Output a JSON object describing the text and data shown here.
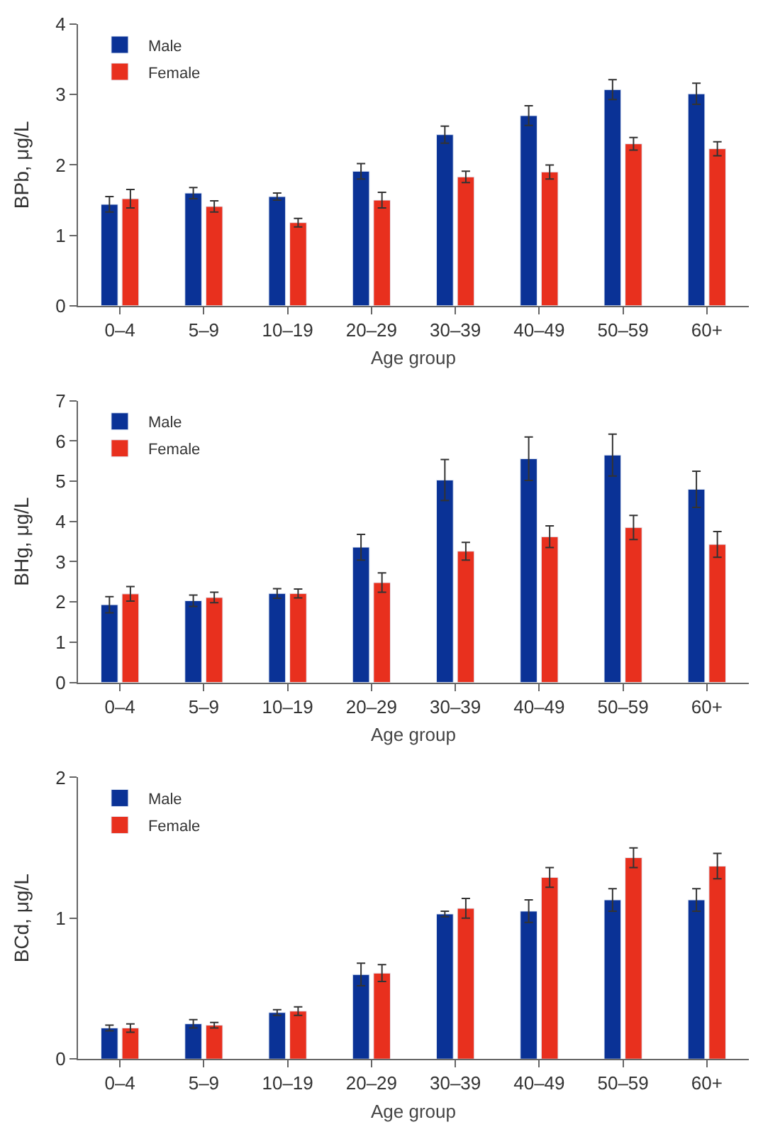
{
  "chart_data": [
    {
      "type": "bar",
      "xlabel": "Age group",
      "ylabel": "BPb, μg/L",
      "categories": [
        "0–4",
        "5–9",
        "10–19",
        "20–29",
        "30–39",
        "40–49",
        "50–59",
        "60+"
      ],
      "ylim": [
        0,
        4
      ],
      "yticks": [
        0,
        1,
        2,
        3,
        4
      ],
      "legend": "top left",
      "series": [
        {
          "name": "Male",
          "color": "#0a3296",
          "values": [
            1.44,
            1.6,
            1.55,
            1.91,
            2.43,
            2.7,
            3.07,
            3.01
          ],
          "errors": [
            0.11,
            0.08,
            0.05,
            0.11,
            0.12,
            0.14,
            0.14,
            0.15
          ]
        },
        {
          "name": "Female",
          "color": "#e8301e",
          "values": [
            1.52,
            1.41,
            1.18,
            1.5,
            1.83,
            1.9,
            2.3,
            2.23
          ],
          "errors": [
            0.13,
            0.08,
            0.06,
            0.11,
            0.08,
            0.1,
            0.09,
            0.1
          ]
        }
      ]
    },
    {
      "type": "bar",
      "xlabel": "Age group",
      "ylabel": "BHg, μg/L",
      "categories": [
        "0–4",
        "5–9",
        "10–19",
        "20–29",
        "30–39",
        "40–49",
        "50–59",
        "60+"
      ],
      "ylim": [
        0,
        7
      ],
      "yticks": [
        0,
        1,
        2,
        3,
        4,
        5,
        6,
        7
      ],
      "legend": "top left",
      "series": [
        {
          "name": "Male",
          "color": "#0a3296",
          "values": [
            1.93,
            2.03,
            2.21,
            3.36,
            5.03,
            5.56,
            5.65,
            4.8
          ],
          "errors": [
            0.2,
            0.14,
            0.12,
            0.32,
            0.51,
            0.54,
            0.52,
            0.45
          ]
        },
        {
          "name": "Female",
          "color": "#e8301e",
          "values": [
            2.2,
            2.11,
            2.21,
            2.48,
            3.26,
            3.62,
            3.85,
            3.43
          ],
          "errors": [
            0.18,
            0.13,
            0.11,
            0.24,
            0.22,
            0.27,
            0.3,
            0.32
          ]
        }
      ]
    },
    {
      "type": "bar",
      "xlabel": "Age group",
      "ylabel": "BCd, μg/L",
      "categories": [
        "0–4",
        "5–9",
        "10–19",
        "20–29",
        "30–39",
        "40–49",
        "50–59",
        "60+"
      ],
      "ylim": [
        0,
        2
      ],
      "yticks": [
        0,
        1,
        2
      ],
      "legend": "top left",
      "series": [
        {
          "name": "Male",
          "color": "#0a3296",
          "values": [
            0.22,
            0.25,
            0.33,
            0.6,
            1.03,
            1.05,
            1.13,
            1.13
          ],
          "errors": [
            0.02,
            0.03,
            0.02,
            0.08,
            0.02,
            0.08,
            0.08,
            0.08
          ]
        },
        {
          "name": "Female",
          "color": "#e8301e",
          "values": [
            0.22,
            0.24,
            0.34,
            0.61,
            1.07,
            1.29,
            1.43,
            1.37
          ],
          "errors": [
            0.03,
            0.02,
            0.03,
            0.06,
            0.07,
            0.07,
            0.07,
            0.09
          ]
        }
      ]
    }
  ]
}
